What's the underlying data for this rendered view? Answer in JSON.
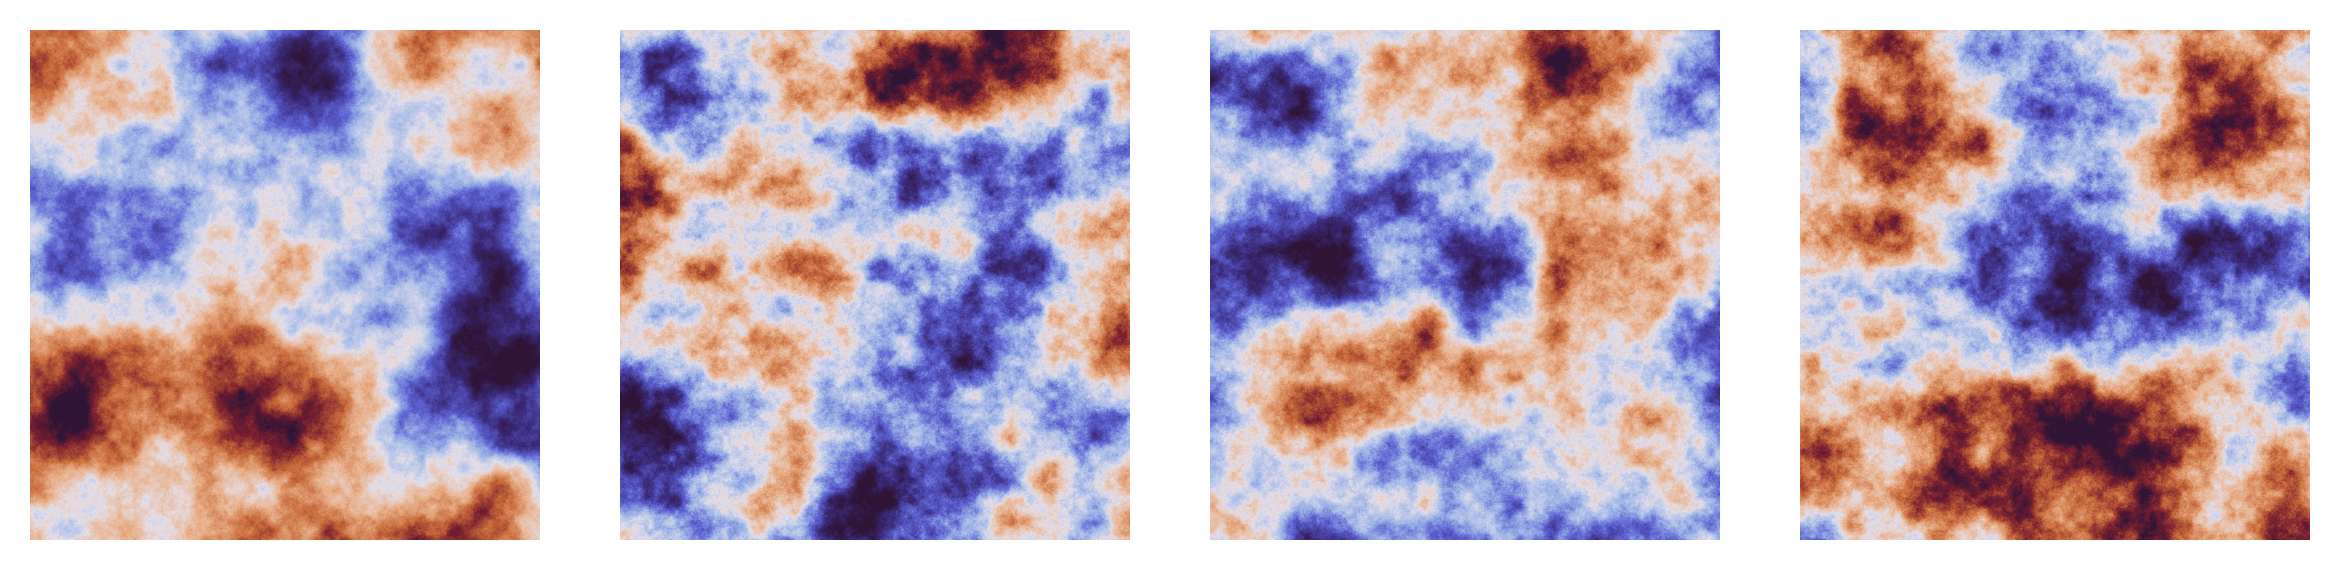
{
  "figure": {
    "panel_count": 4,
    "colormap": "twilight_shifted",
    "colormap_stops": [
      "#2f1436",
      "#3b2a7a",
      "#5b5fd0",
      "#9fb6e8",
      "#e6e0ea",
      "#e9b08a",
      "#c86a3a",
      "#7a1f2f",
      "#2f1436"
    ],
    "panels": [
      {
        "seed": 11
      },
      {
        "seed": 27
      },
      {
        "seed": 53
      },
      {
        "seed": 89
      }
    ]
  }
}
